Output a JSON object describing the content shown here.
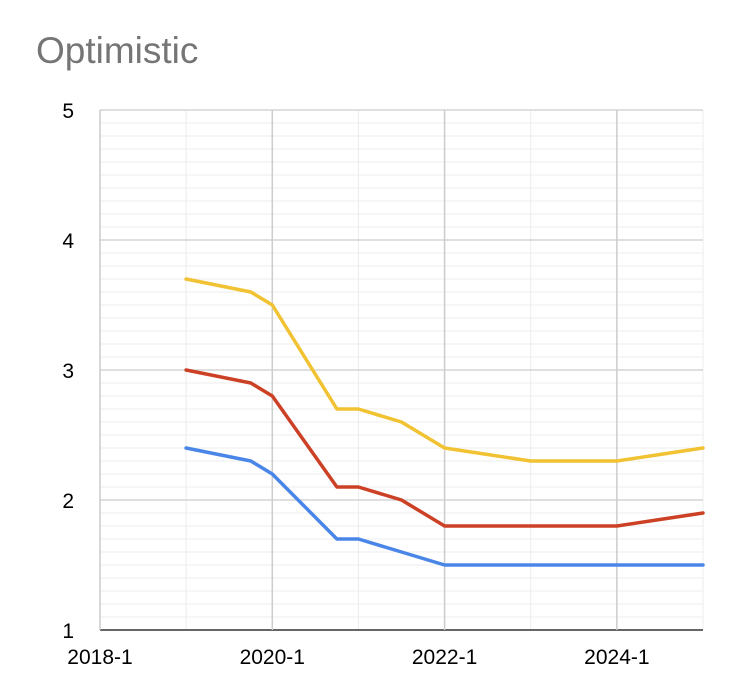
{
  "chart_data": {
    "type": "line",
    "title": "Optimistic",
    "xlabel": "",
    "ylabel": "",
    "x_ticks": [
      "2018-1",
      "2020-1",
      "2022-1",
      "2024-1"
    ],
    "x_tick_years": [
      2018,
      2020,
      2022,
      2024
    ],
    "xlim": [
      2018,
      2025.0
    ],
    "y_ticks": [
      1,
      2,
      3,
      4,
      5
    ],
    "ylim": [
      1,
      5
    ],
    "grid": true,
    "legend": "none",
    "x": [
      2019.0,
      2019.75,
      2020.0,
      2020.75,
      2021.0,
      2021.5,
      2022.0,
      2022.5,
      2023.0,
      2023.5,
      2024.0,
      2024.5,
      2025.0
    ],
    "series": [
      {
        "color": "#f1c232",
        "values": [
          3.7,
          3.6,
          3.5,
          2.7,
          2.7,
          2.6,
          2.4,
          2.35,
          2.3,
          2.3,
          2.3,
          2.35,
          2.4
        ]
      },
      {
        "color": "#cc4125",
        "values": [
          3.0,
          2.9,
          2.8,
          2.1,
          2.1,
          2.0,
          1.8,
          1.8,
          1.8,
          1.8,
          1.8,
          1.85,
          1.9
        ]
      },
      {
        "color": "#4a86e8",
        "values": [
          2.4,
          2.3,
          2.2,
          1.7,
          1.7,
          1.6,
          1.5,
          1.5,
          1.5,
          1.5,
          1.5,
          1.5,
          1.5
        ]
      }
    ]
  }
}
